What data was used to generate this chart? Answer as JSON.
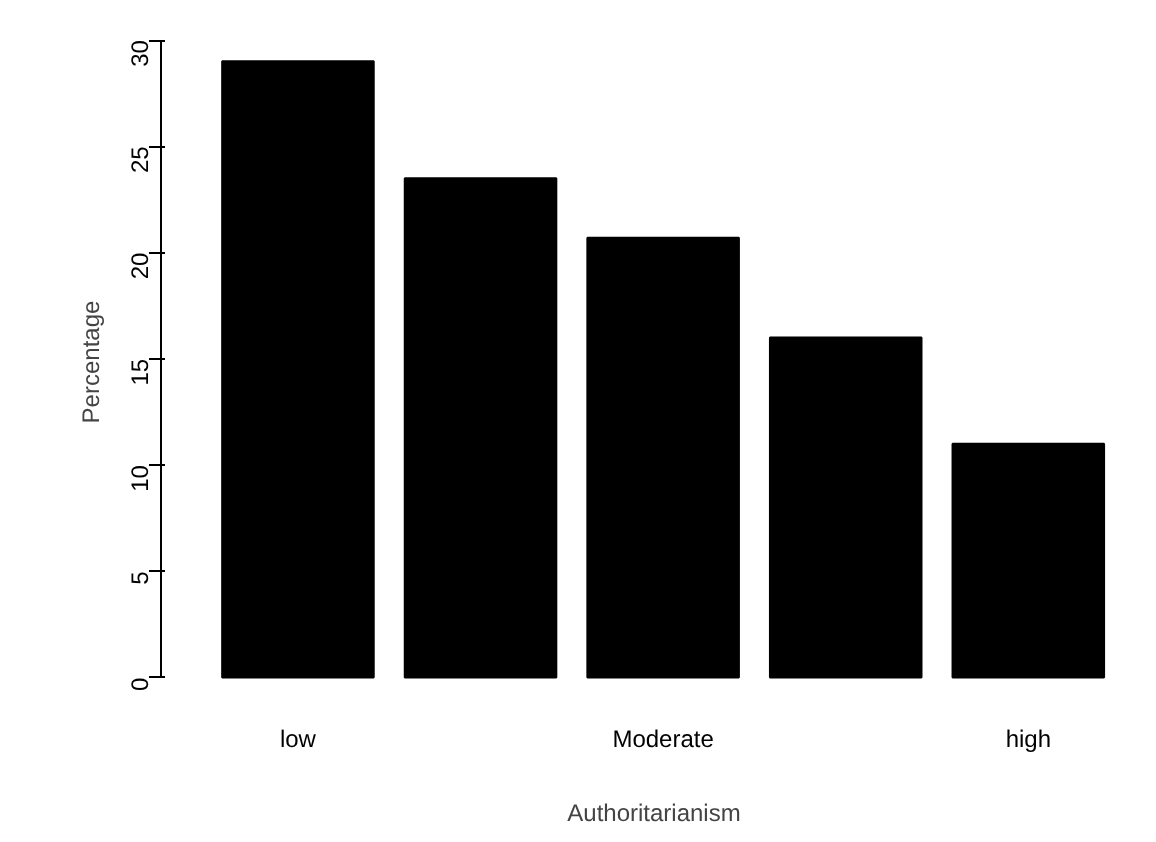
{
  "chart_data": {
    "type": "bar",
    "xlabel": "Authoritarianism",
    "ylabel": "Percentage",
    "categories": [
      "low",
      null,
      "Moderate",
      null,
      "high"
    ],
    "values": [
      29,
      23.5,
      20.7,
      16,
      11
    ],
    "color": "#000000",
    "ylim": [
      0,
      30
    ],
    "yticks": [
      0,
      5,
      10,
      15,
      20,
      25,
      30
    ],
    "grid": false
  }
}
